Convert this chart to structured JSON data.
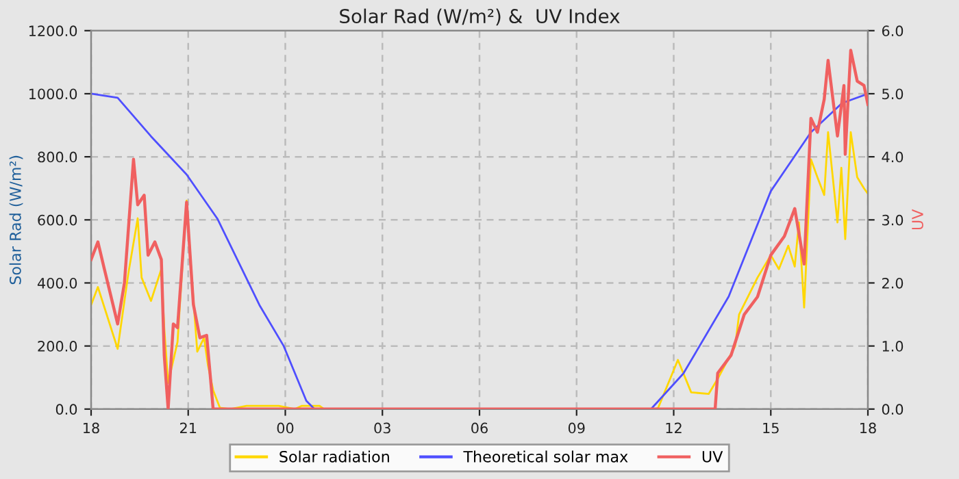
{
  "chart_data": {
    "type": "line",
    "title": "Solar Rad (W/m²) &  UV Index",
    "ylabel": "Solar Rad (W/m²)",
    "y2label": "UV",
    "xlim": [
      18,
      42
    ],
    "xticks": [
      {
        "value": 18,
        "label": "18"
      },
      {
        "value": 21,
        "label": "21"
      },
      {
        "value": 24,
        "label": "00"
      },
      {
        "value": 27,
        "label": "03"
      },
      {
        "value": 30,
        "label": "06"
      },
      {
        "value": 33,
        "label": "09"
      },
      {
        "value": 36,
        "label": "12"
      },
      {
        "value": 39,
        "label": "15"
      },
      {
        "value": 42,
        "label": "18"
      }
    ],
    "ylim": [
      0,
      1200
    ],
    "yticks": [
      {
        "value": 0,
        "label": "0.0"
      },
      {
        "value": 200,
        "label": "200.0"
      },
      {
        "value": 400,
        "label": "400.0"
      },
      {
        "value": 600,
        "label": "600.0"
      },
      {
        "value": 800,
        "label": "800.0"
      },
      {
        "value": 1000,
        "label": "1000.0"
      },
      {
        "value": 1200,
        "label": "1200.0"
      }
    ],
    "y2lim": [
      0,
      6
    ],
    "y2ticks": [
      {
        "value": 0,
        "label": "0.0"
      },
      {
        "value": 1,
        "label": "1.0"
      },
      {
        "value": 2,
        "label": "2.0"
      },
      {
        "value": 3,
        "label": "3.0"
      },
      {
        "value": 4,
        "label": "4.0"
      },
      {
        "value": 5,
        "label": "5.0"
      },
      {
        "value": 6,
        "label": "6.0"
      }
    ],
    "grid": true,
    "legend": "bottom",
    "marker": "none",
    "line_style": "solid",
    "series": [
      {
        "name": "Solar radiation",
        "color": "#ffd700",
        "x": [
          18.0,
          18.21,
          18.82,
          19.15,
          19.44,
          19.56,
          19.85,
          20.17,
          20.26,
          20.38,
          20.67,
          20.95,
          21.08,
          21.28,
          21.49,
          21.61,
          21.77,
          21.98,
          22.3,
          22.8,
          23.8,
          24.3,
          24.5,
          25.06,
          25.2,
          35.44,
          35.52,
          36.13,
          36.54,
          37.08,
          37.36,
          37.9,
          38.02,
          38.59,
          39.0,
          39.25,
          39.54,
          39.74,
          39.87,
          40.03,
          40.24,
          40.44,
          40.65,
          40.77,
          41.06,
          41.18,
          41.3,
          41.47,
          41.67,
          41.88,
          42.0
        ],
        "values": [
          330,
          387,
          191,
          430,
          605,
          417,
          343,
          444,
          256,
          83,
          213,
          661,
          461,
          182,
          226,
          139,
          60,
          4,
          0,
          10,
          10,
          0,
          10,
          10,
          0,
          0,
          4,
          156,
          53,
          48,
          96,
          200,
          300,
          417,
          488,
          444,
          518,
          452,
          592,
          322,
          792,
          735,
          679,
          878,
          592,
          765,
          539,
          878,
          735,
          700,
          683
        ]
      },
      {
        "name": "Theoretical solar max",
        "color": "#4f4fff",
        "x": [
          18,
          18.82,
          19.85,
          20.95,
          21.9,
          23.2,
          23.95,
          24.65,
          24.9,
          35.3,
          36.3,
          37.7,
          39.0,
          40.24,
          41.2,
          42.0
        ],
        "values": [
          1000,
          987,
          865,
          744,
          604,
          330,
          200,
          26,
          0,
          0,
          113,
          357,
          691,
          878,
          970,
          1000
        ]
      },
      {
        "name": "UV",
        "color": "#f06060",
        "axis": "y2",
        "x": [
          18.0,
          18.21,
          18.41,
          18.82,
          19.03,
          19.31,
          19.44,
          19.64,
          19.76,
          19.97,
          20.17,
          20.26,
          20.38,
          20.54,
          20.67,
          20.95,
          21.16,
          21.36,
          21.57,
          21.69,
          21.77,
          37.28,
          37.36,
          37.77,
          38.18,
          38.59,
          39.0,
          39.42,
          39.74,
          40.03,
          40.24,
          40.44,
          40.65,
          40.77,
          41.06,
          41.26,
          41.3,
          41.47,
          41.67,
          41.88,
          42.0
        ],
        "values": [
          2.37,
          2.65,
          2.22,
          1.35,
          2.0,
          3.96,
          3.24,
          3.39,
          2.44,
          2.65,
          2.37,
          0.85,
          0,
          1.35,
          1.29,
          3.28,
          1.66,
          1.13,
          1.17,
          0.48,
          0,
          0,
          0.57,
          0.85,
          1.5,
          1.78,
          2.44,
          2.74,
          3.18,
          2.3,
          4.61,
          4.39,
          4.91,
          5.53,
          4.33,
          5.13,
          4.04,
          5.69,
          5.2,
          5.13,
          4.83
        ]
      }
    ]
  }
}
